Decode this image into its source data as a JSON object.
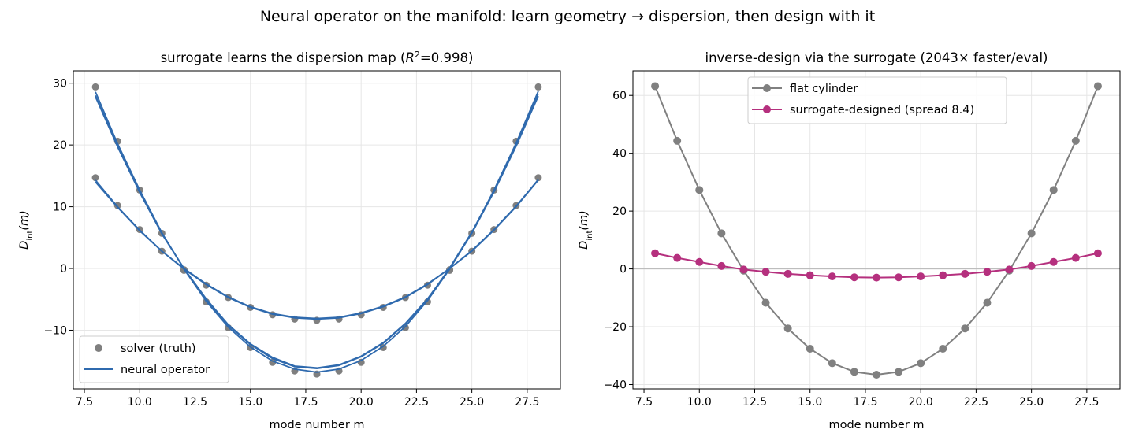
{
  "suptitle": "Neural operator on the manifold: learn geometry → dispersion, then design with it",
  "chart_data": [
    {
      "type": "scatter",
      "title_prefix": "surrogate learns the dispersion map  (",
      "title_r2_symbol": "R",
      "title_r2_exp": "2",
      "title_r2_value": "=0.998)",
      "xlabel": "mode number m",
      "ylabel_main": "D",
      "ylabel_sub": "int",
      "ylabel_arg": "(m)",
      "xlim": [
        7.0,
        29.0
      ],
      "ylim": [
        -19.5,
        32.0
      ],
      "xticks": [
        7.5,
        10.0,
        12.5,
        15.0,
        17.5,
        20.0,
        22.5,
        25.0,
        27.5
      ],
      "xtick_labels": [
        "7.5",
        "10.0",
        "12.5",
        "15.0",
        "17.5",
        "20.0",
        "22.5",
        "25.0",
        "27.5"
      ],
      "yticks": [
        -10,
        0,
        10,
        20,
        30
      ],
      "ytick_labels": [
        "−10",
        "0",
        "10",
        "20",
        "30"
      ],
      "grid": true,
      "legend_position": "lower-left",
      "x": [
        8,
        9,
        10,
        11,
        12,
        13,
        14,
        15,
        16,
        17,
        18,
        19,
        20,
        21,
        22,
        23,
        24,
        25,
        26,
        27,
        28
      ],
      "series": [
        {
          "name": "solver (truth)",
          "style": "points",
          "color": "#7f7f7f",
          "values_a": [
            14.7,
            10.2,
            6.3,
            2.8,
            -0.2,
            -2.7,
            -4.7,
            -6.3,
            -7.5,
            -8.2,
            -8.4,
            -8.2,
            -7.5,
            -6.3,
            -4.7,
            -2.7,
            -0.2,
            2.8,
            6.3,
            10.2,
            14.7
          ],
          "values_b": [
            29.4,
            20.6,
            12.7,
            5.7,
            -0.3,
            -5.4,
            -9.6,
            -12.8,
            -15.2,
            -16.6,
            -17.1,
            -16.6,
            -15.2,
            -12.8,
            -9.6,
            -5.4,
            -0.3,
            5.7,
            12.7,
            20.6,
            29.4
          ]
        },
        {
          "name": "neural operator",
          "style": "line",
          "color": "#2f6aae",
          "curves": [
            [
              14.3,
              10.0,
              6.2,
              2.8,
              -0.1,
              -2.6,
              -4.7,
              -6.3,
              -7.4,
              -8.0,
              -8.2,
              -8.0,
              -7.3,
              -6.2,
              -4.7,
              -2.6,
              0.0,
              2.8,
              6.2,
              10.0,
              14.3
            ],
            [
              14.0,
              9.9,
              6.1,
              2.8,
              0.0,
              -2.5,
              -4.6,
              -6.2,
              -7.3,
              -7.9,
              -8.1,
              -7.9,
              -7.2,
              -6.1,
              -4.6,
              -2.5,
              0.0,
              2.9,
              6.3,
              10.1,
              14.4
            ],
            [
              28.0,
              19.8,
              12.4,
              5.7,
              0.0,
              -5.0,
              -9.2,
              -12.3,
              -14.6,
              -15.9,
              -16.2,
              -15.7,
              -14.3,
              -12.1,
              -9.0,
              -5.0,
              0.1,
              5.9,
              12.6,
              20.0,
              28.3
            ],
            [
              28.6,
              20.2,
              12.7,
              5.8,
              -0.1,
              -5.3,
              -9.5,
              -12.7,
              -15.0,
              -16.3,
              -16.8,
              -16.3,
              -14.9,
              -12.6,
              -9.4,
              -5.2,
              -0.1,
              5.8,
              12.7,
              20.3,
              28.7
            ],
            [
              27.8,
              19.7,
              12.3,
              5.6,
              0.0,
              -4.9,
              -9.1,
              -12.2,
              -14.4,
              -15.8,
              -16.1,
              -15.6,
              -14.2,
              -12.0,
              -8.9,
              -4.9,
              0.0,
              5.7,
              12.4,
              19.8,
              27.9
            ]
          ]
        }
      ]
    },
    {
      "type": "line",
      "title": "inverse-design via the surrogate  (2043× faster/eval)",
      "xlabel": "mode number m",
      "ylabel_main": "D",
      "ylabel_sub": "int",
      "ylabel_arg": "(m)",
      "xlim": [
        7.0,
        29.0
      ],
      "ylim": [
        -41.5,
        68.5
      ],
      "xticks": [
        7.5,
        10.0,
        12.5,
        15.0,
        17.5,
        20.0,
        22.5,
        25.0,
        27.5
      ],
      "xtick_labels": [
        "7.5",
        "10.0",
        "12.5",
        "15.0",
        "17.5",
        "20.0",
        "22.5",
        "25.0",
        "27.5"
      ],
      "yticks": [
        -40,
        -20,
        0,
        20,
        40,
        60
      ],
      "ytick_labels": [
        "−40",
        "−20",
        "0",
        "20",
        "40",
        "60"
      ],
      "grid": true,
      "zero_line": true,
      "legend_position": "top-center",
      "x": [
        8,
        9,
        10,
        11,
        12,
        13,
        14,
        15,
        16,
        17,
        18,
        19,
        20,
        21,
        22,
        23,
        24,
        25,
        26,
        27,
        28
      ],
      "series": [
        {
          "name": "flat cylinder",
          "color": "#808080",
          "values": [
            63.2,
            44.3,
            27.3,
            12.3,
            -0.6,
            -11.7,
            -20.6,
            -27.6,
            -32.6,
            -35.6,
            -36.6,
            -35.6,
            -32.6,
            -27.6,
            -20.6,
            -11.7,
            -0.6,
            12.3,
            27.3,
            44.3,
            63.2
          ]
        },
        {
          "name": "surrogate-designed (spread 8.4)",
          "color": "#b5307e",
          "values": [
            5.4,
            3.8,
            2.4,
            1.0,
            -0.2,
            -1.0,
            -1.7,
            -2.2,
            -2.6,
            -2.9,
            -3.0,
            -2.9,
            -2.6,
            -2.2,
            -1.7,
            -1.0,
            -0.2,
            1.0,
            2.4,
            3.8,
            5.4
          ]
        }
      ]
    }
  ]
}
